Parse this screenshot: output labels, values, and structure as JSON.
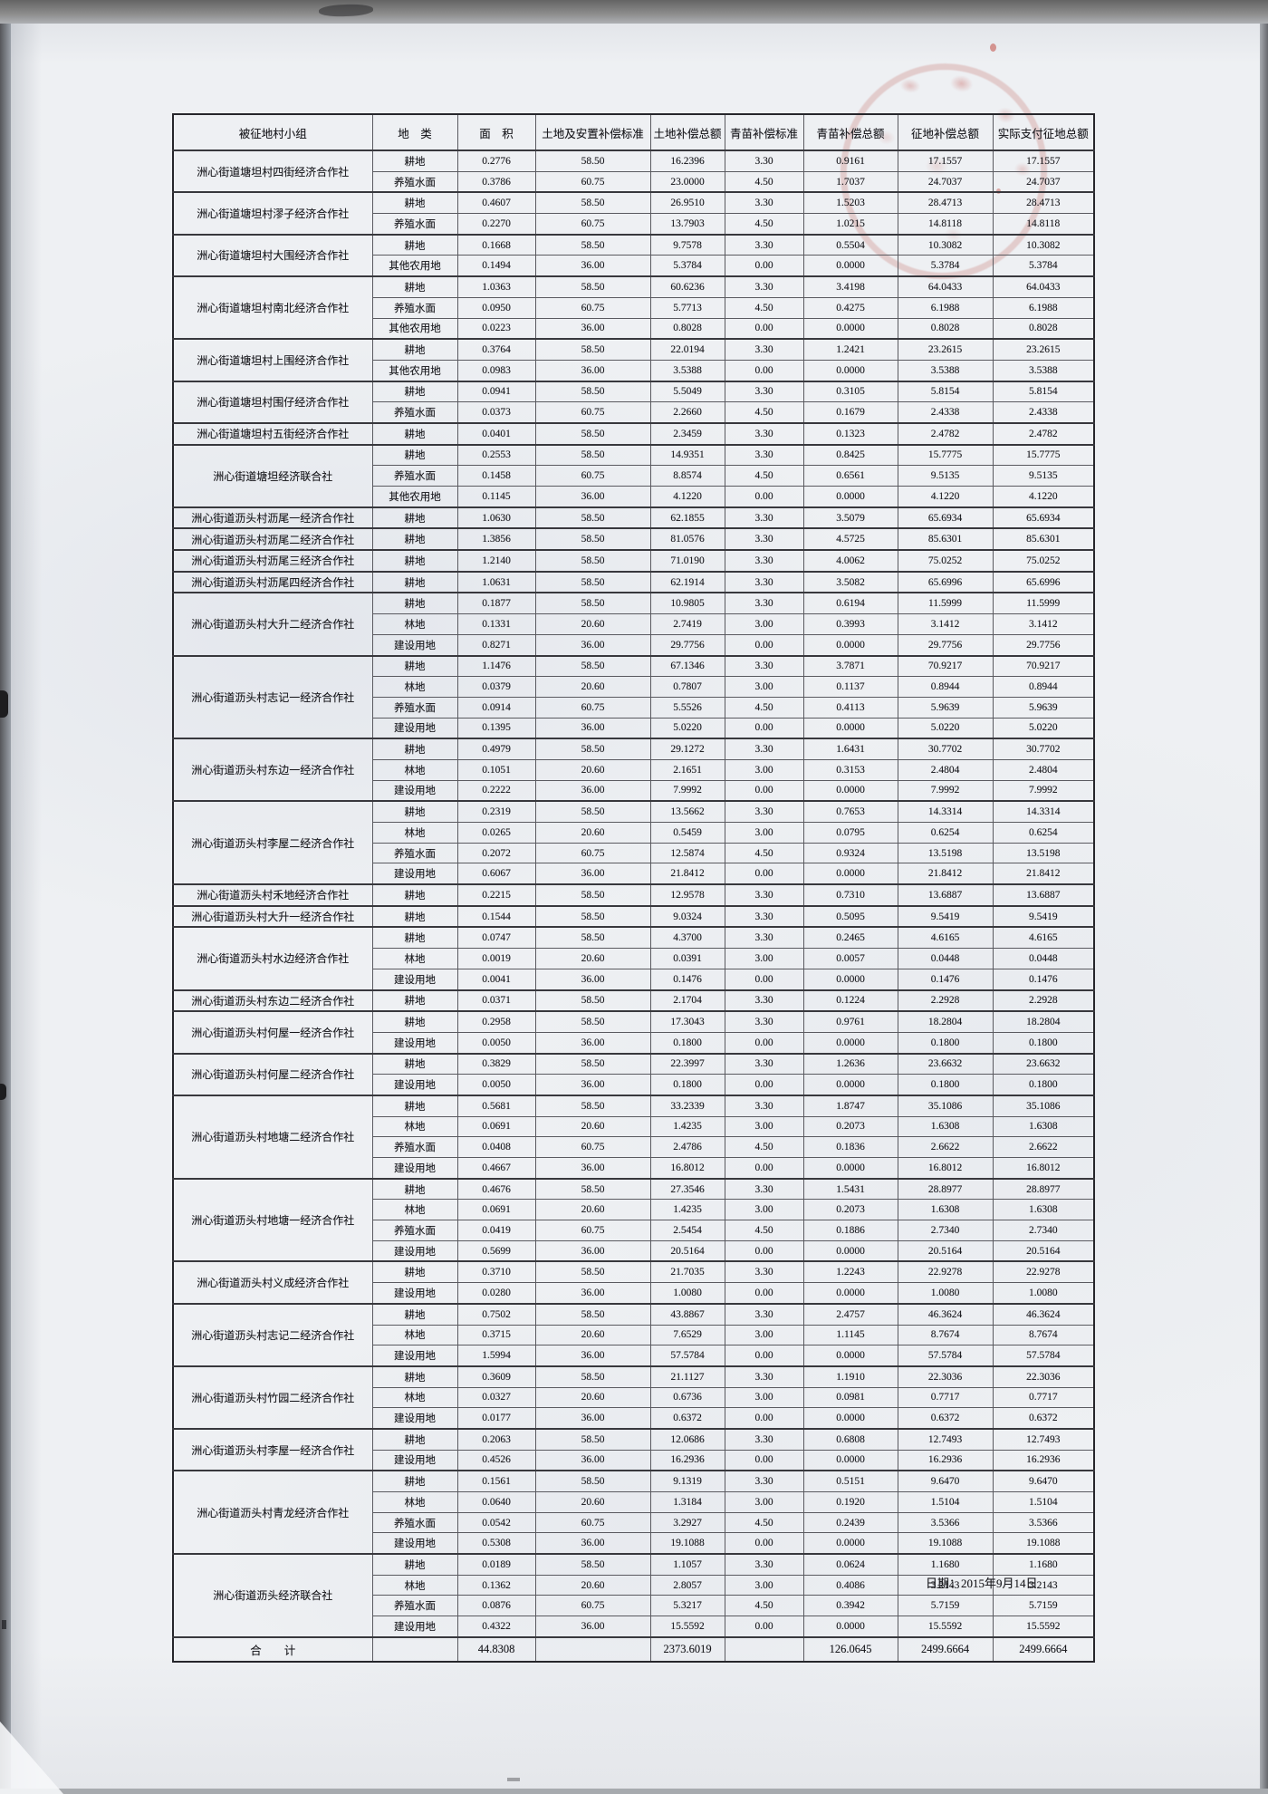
{
  "page": {
    "date_line": "日期：2015年9月14日"
  },
  "table": {
    "headers": [
      "被征地村小组",
      "地　类",
      "面　积",
      "土地及安置补偿标准",
      "土地补偿总额",
      "青苗补偿标准",
      "青苗补偿总额",
      "征地补偿总额",
      "实际支付征地总额"
    ],
    "row_fields": [
      "land_type",
      "area",
      "land_std",
      "land_total",
      "seedling_std",
      "seedling_total",
      "acquisition_total",
      "actual_paid_total"
    ],
    "groups": [
      {
        "name": "洲心街道塘坦村四街经济合作社",
        "rows": [
          [
            "耕地",
            "0.2776",
            "58.50",
            "16.2396",
            "3.30",
            "0.9161",
            "17.1557",
            "17.1557"
          ],
          [
            "养殖水面",
            "0.3786",
            "60.75",
            "23.0000",
            "4.50",
            "1.7037",
            "24.7037",
            "24.7037"
          ]
        ]
      },
      {
        "name": "洲心街道塘坦村漻子经济合作社",
        "rows": [
          [
            "耕地",
            "0.4607",
            "58.50",
            "26.9510",
            "3.30",
            "1.5203",
            "28.4713",
            "28.4713"
          ],
          [
            "养殖水面",
            "0.2270",
            "60.75",
            "13.7903",
            "4.50",
            "1.0215",
            "14.8118",
            "14.8118"
          ]
        ]
      },
      {
        "name": "洲心街道塘坦村大围经济合作社",
        "rows": [
          [
            "耕地",
            "0.1668",
            "58.50",
            "9.7578",
            "3.30",
            "0.5504",
            "10.3082",
            "10.3082"
          ],
          [
            "其他农用地",
            "0.1494",
            "36.00",
            "5.3784",
            "0.00",
            "0.0000",
            "5.3784",
            "5.3784"
          ]
        ]
      },
      {
        "name": "洲心街道塘坦村南北经济合作社",
        "rows": [
          [
            "耕地",
            "1.0363",
            "58.50",
            "60.6236",
            "3.30",
            "3.4198",
            "64.0433",
            "64.0433"
          ],
          [
            "养殖水面",
            "0.0950",
            "60.75",
            "5.7713",
            "4.50",
            "0.4275",
            "6.1988",
            "6.1988"
          ],
          [
            "其他农用地",
            "0.0223",
            "36.00",
            "0.8028",
            "0.00",
            "0.0000",
            "0.8028",
            "0.8028"
          ]
        ]
      },
      {
        "name": "洲心街道塘坦村上围经济合作社",
        "rows": [
          [
            "耕地",
            "0.3764",
            "58.50",
            "22.0194",
            "3.30",
            "1.2421",
            "23.2615",
            "23.2615"
          ],
          [
            "其他农用地",
            "0.0983",
            "36.00",
            "3.5388",
            "0.00",
            "0.0000",
            "3.5388",
            "3.5388"
          ]
        ]
      },
      {
        "name": "洲心街道塘坦村围仔经济合作社",
        "rows": [
          [
            "耕地",
            "0.0941",
            "58.50",
            "5.5049",
            "3.30",
            "0.3105",
            "5.8154",
            "5.8154"
          ],
          [
            "养殖水面",
            "0.0373",
            "60.75",
            "2.2660",
            "4.50",
            "0.1679",
            "2.4338",
            "2.4338"
          ]
        ]
      },
      {
        "name": "洲心街道塘坦村五街经济合作社",
        "rows": [
          [
            "耕地",
            "0.0401",
            "58.50",
            "2.3459",
            "3.30",
            "0.1323",
            "2.4782",
            "2.4782"
          ]
        ]
      },
      {
        "name": "洲心街道塘坦经济联合社",
        "rows": [
          [
            "耕地",
            "0.2553",
            "58.50",
            "14.9351",
            "3.30",
            "0.8425",
            "15.7775",
            "15.7775"
          ],
          [
            "养殖水面",
            "0.1458",
            "60.75",
            "8.8574",
            "4.50",
            "0.6561",
            "9.5135",
            "9.5135"
          ],
          [
            "其他农用地",
            "0.1145",
            "36.00",
            "4.1220",
            "0.00",
            "0.0000",
            "4.1220",
            "4.1220"
          ]
        ]
      },
      {
        "name": "洲心街道沥头村沥尾一经济合作社",
        "rows": [
          [
            "耕地",
            "1.0630",
            "58.50",
            "62.1855",
            "3.30",
            "3.5079",
            "65.6934",
            "65.6934"
          ]
        ]
      },
      {
        "name": "洲心街道沥头村沥尾二经济合作社",
        "rows": [
          [
            "耕地",
            "1.3856",
            "58.50",
            "81.0576",
            "3.30",
            "4.5725",
            "85.6301",
            "85.6301"
          ]
        ]
      },
      {
        "name": "洲心街道沥头村沥尾三经济合作社",
        "rows": [
          [
            "耕地",
            "1.2140",
            "58.50",
            "71.0190",
            "3.30",
            "4.0062",
            "75.0252",
            "75.0252"
          ]
        ]
      },
      {
        "name": "洲心街道沥头村沥尾四经济合作社",
        "rows": [
          [
            "耕地",
            "1.0631",
            "58.50",
            "62.1914",
            "3.30",
            "3.5082",
            "65.6996",
            "65.6996"
          ]
        ]
      },
      {
        "name": "洲心街道沥头村大升二经济合作社",
        "rows": [
          [
            "耕地",
            "0.1877",
            "58.50",
            "10.9805",
            "3.30",
            "0.6194",
            "11.5999",
            "11.5999"
          ],
          [
            "林地",
            "0.1331",
            "20.60",
            "2.7419",
            "3.00",
            "0.3993",
            "3.1412",
            "3.1412"
          ],
          [
            "建设用地",
            "0.8271",
            "36.00",
            "29.7756",
            "0.00",
            "0.0000",
            "29.7756",
            "29.7756"
          ]
        ]
      },
      {
        "name": "洲心街道沥头村志记一经济合作社",
        "rows": [
          [
            "耕地",
            "1.1476",
            "58.50",
            "67.1346",
            "3.30",
            "3.7871",
            "70.9217",
            "70.9217"
          ],
          [
            "林地",
            "0.0379",
            "20.60",
            "0.7807",
            "3.00",
            "0.1137",
            "0.8944",
            "0.8944"
          ],
          [
            "养殖水面",
            "0.0914",
            "60.75",
            "5.5526",
            "4.50",
            "0.4113",
            "5.9639",
            "5.9639"
          ],
          [
            "建设用地",
            "0.1395",
            "36.00",
            "5.0220",
            "0.00",
            "0.0000",
            "5.0220",
            "5.0220"
          ]
        ]
      },
      {
        "name": "洲心街道沥头村东边一经济合作社",
        "rows": [
          [
            "耕地",
            "0.4979",
            "58.50",
            "29.1272",
            "3.30",
            "1.6431",
            "30.7702",
            "30.7702"
          ],
          [
            "林地",
            "0.1051",
            "20.60",
            "2.1651",
            "3.00",
            "0.3153",
            "2.4804",
            "2.4804"
          ],
          [
            "建设用地",
            "0.2222",
            "36.00",
            "7.9992",
            "0.00",
            "0.0000",
            "7.9992",
            "7.9992"
          ]
        ]
      },
      {
        "name": "洲心街道沥头村李屋二经济合作社",
        "rows": [
          [
            "耕地",
            "0.2319",
            "58.50",
            "13.5662",
            "3.30",
            "0.7653",
            "14.3314",
            "14.3314"
          ],
          [
            "林地",
            "0.0265",
            "20.60",
            "0.5459",
            "3.00",
            "0.0795",
            "0.6254",
            "0.6254"
          ],
          [
            "养殖水面",
            "0.2072",
            "60.75",
            "12.5874",
            "4.50",
            "0.9324",
            "13.5198",
            "13.5198"
          ],
          [
            "建设用地",
            "0.6067",
            "36.00",
            "21.8412",
            "0.00",
            "0.0000",
            "21.8412",
            "21.8412"
          ]
        ]
      },
      {
        "name": "洲心街道沥头村禾地经济合作社",
        "rows": [
          [
            "耕地",
            "0.2215",
            "58.50",
            "12.9578",
            "3.30",
            "0.7310",
            "13.6887",
            "13.6887"
          ]
        ]
      },
      {
        "name": "洲心街道沥头村大升一经济合作社",
        "rows": [
          [
            "耕地",
            "0.1544",
            "58.50",
            "9.0324",
            "3.30",
            "0.5095",
            "9.5419",
            "9.5419"
          ]
        ]
      },
      {
        "name": "洲心街道沥头村水边经济合作社",
        "rows": [
          [
            "耕地",
            "0.0747",
            "58.50",
            "4.3700",
            "3.30",
            "0.2465",
            "4.6165",
            "4.6165"
          ],
          [
            "林地",
            "0.0019",
            "20.60",
            "0.0391",
            "3.00",
            "0.0057",
            "0.0448",
            "0.0448"
          ],
          [
            "建设用地",
            "0.0041",
            "36.00",
            "0.1476",
            "0.00",
            "0.0000",
            "0.1476",
            "0.1476"
          ]
        ]
      },
      {
        "name": "洲心街道沥头村东边二经济合作社",
        "rows": [
          [
            "耕地",
            "0.0371",
            "58.50",
            "2.1704",
            "3.30",
            "0.1224",
            "2.2928",
            "2.2928"
          ]
        ]
      },
      {
        "name": "洲心街道沥头村何屋一经济合作社",
        "rows": [
          [
            "耕地",
            "0.2958",
            "58.50",
            "17.3043",
            "3.30",
            "0.9761",
            "18.2804",
            "18.2804"
          ],
          [
            "建设用地",
            "0.0050",
            "36.00",
            "0.1800",
            "0.00",
            "0.0000",
            "0.1800",
            "0.1800"
          ]
        ]
      },
      {
        "name": "洲心街道沥头村何屋二经济合作社",
        "rows": [
          [
            "耕地",
            "0.3829",
            "58.50",
            "22.3997",
            "3.30",
            "1.2636",
            "23.6632",
            "23.6632"
          ],
          [
            "建设用地",
            "0.0050",
            "36.00",
            "0.1800",
            "0.00",
            "0.0000",
            "0.1800",
            "0.1800"
          ]
        ]
      },
      {
        "name": "洲心街道沥头村地塘二经济合作社",
        "rows": [
          [
            "耕地",
            "0.5681",
            "58.50",
            "33.2339",
            "3.30",
            "1.8747",
            "35.1086",
            "35.1086"
          ],
          [
            "林地",
            "0.0691",
            "20.60",
            "1.4235",
            "3.00",
            "0.2073",
            "1.6308",
            "1.6308"
          ],
          [
            "养殖水面",
            "0.0408",
            "60.75",
            "2.4786",
            "4.50",
            "0.1836",
            "2.6622",
            "2.6622"
          ],
          [
            "建设用地",
            "0.4667",
            "36.00",
            "16.8012",
            "0.00",
            "0.0000",
            "16.8012",
            "16.8012"
          ]
        ]
      },
      {
        "name": "洲心街道沥头村地塘一经济合作社",
        "rows": [
          [
            "耕地",
            "0.4676",
            "58.50",
            "27.3546",
            "3.30",
            "1.5431",
            "28.8977",
            "28.8977"
          ],
          [
            "林地",
            "0.0691",
            "20.60",
            "1.4235",
            "3.00",
            "0.2073",
            "1.6308",
            "1.6308"
          ],
          [
            "养殖水面",
            "0.0419",
            "60.75",
            "2.5454",
            "4.50",
            "0.1886",
            "2.7340",
            "2.7340"
          ],
          [
            "建设用地",
            "0.5699",
            "36.00",
            "20.5164",
            "0.00",
            "0.0000",
            "20.5164",
            "20.5164"
          ]
        ]
      },
      {
        "name": "洲心街道沥头村义成经济合作社",
        "rows": [
          [
            "耕地",
            "0.3710",
            "58.50",
            "21.7035",
            "3.30",
            "1.2243",
            "22.9278",
            "22.9278"
          ],
          [
            "建设用地",
            "0.0280",
            "36.00",
            "1.0080",
            "0.00",
            "0.0000",
            "1.0080",
            "1.0080"
          ]
        ]
      },
      {
        "name": "洲心街道沥头村志记二经济合作社",
        "rows": [
          [
            "耕地",
            "0.7502",
            "58.50",
            "43.8867",
            "3.30",
            "2.4757",
            "46.3624",
            "46.3624"
          ],
          [
            "林地",
            "0.3715",
            "20.60",
            "7.6529",
            "3.00",
            "1.1145",
            "8.7674",
            "8.7674"
          ],
          [
            "建设用地",
            "1.5994",
            "36.00",
            "57.5784",
            "0.00",
            "0.0000",
            "57.5784",
            "57.5784"
          ]
        ]
      },
      {
        "name": "洲心街道沥头村竹园二经济合作社",
        "rows": [
          [
            "耕地",
            "0.3609",
            "58.50",
            "21.1127",
            "3.30",
            "1.1910",
            "22.3036",
            "22.3036"
          ],
          [
            "林地",
            "0.0327",
            "20.60",
            "0.6736",
            "3.00",
            "0.0981",
            "0.7717",
            "0.7717"
          ],
          [
            "建设用地",
            "0.0177",
            "36.00",
            "0.6372",
            "0.00",
            "0.0000",
            "0.6372",
            "0.6372"
          ]
        ]
      },
      {
        "name": "洲心街道沥头村李屋一经济合作社",
        "rows": [
          [
            "耕地",
            "0.2063",
            "58.50",
            "12.0686",
            "3.30",
            "0.6808",
            "12.7493",
            "12.7493"
          ],
          [
            "建设用地",
            "0.4526",
            "36.00",
            "16.2936",
            "0.00",
            "0.0000",
            "16.2936",
            "16.2936"
          ]
        ]
      },
      {
        "name": "洲心街道沥头村青龙经济合作社",
        "rows": [
          [
            "耕地",
            "0.1561",
            "58.50",
            "9.1319",
            "3.30",
            "0.5151",
            "9.6470",
            "9.6470"
          ],
          [
            "林地",
            "0.0640",
            "20.60",
            "1.3184",
            "3.00",
            "0.1920",
            "1.5104",
            "1.5104"
          ],
          [
            "养殖水面",
            "0.0542",
            "60.75",
            "3.2927",
            "4.50",
            "0.2439",
            "3.5366",
            "3.5366"
          ],
          [
            "建设用地",
            "0.5308",
            "36.00",
            "19.1088",
            "0.00",
            "0.0000",
            "19.1088",
            "19.1088"
          ]
        ]
      },
      {
        "name": "洲心街道沥头经济联合社",
        "rows": [
          [
            "耕地",
            "0.0189",
            "58.50",
            "1.1057",
            "3.30",
            "0.0624",
            "1.1680",
            "1.1680"
          ],
          [
            "林地",
            "0.1362",
            "20.60",
            "2.8057",
            "3.00",
            "0.4086",
            "3.2143",
            "3.2143"
          ],
          [
            "养殖水面",
            "0.0876",
            "60.75",
            "5.3217",
            "4.50",
            "0.3942",
            "5.7159",
            "5.7159"
          ],
          [
            "建设用地",
            "0.4322",
            "36.00",
            "15.5592",
            "0.00",
            "0.0000",
            "15.5592",
            "15.5592"
          ]
        ]
      }
    ],
    "total_row": {
      "label": "合　　计",
      "cells": [
        "",
        "44.8308",
        "",
        "2373.6019",
        "",
        "126.0645",
        "2499.6664",
        "2499.6664"
      ]
    }
  },
  "stamp": {
    "color": "#b63a30"
  }
}
